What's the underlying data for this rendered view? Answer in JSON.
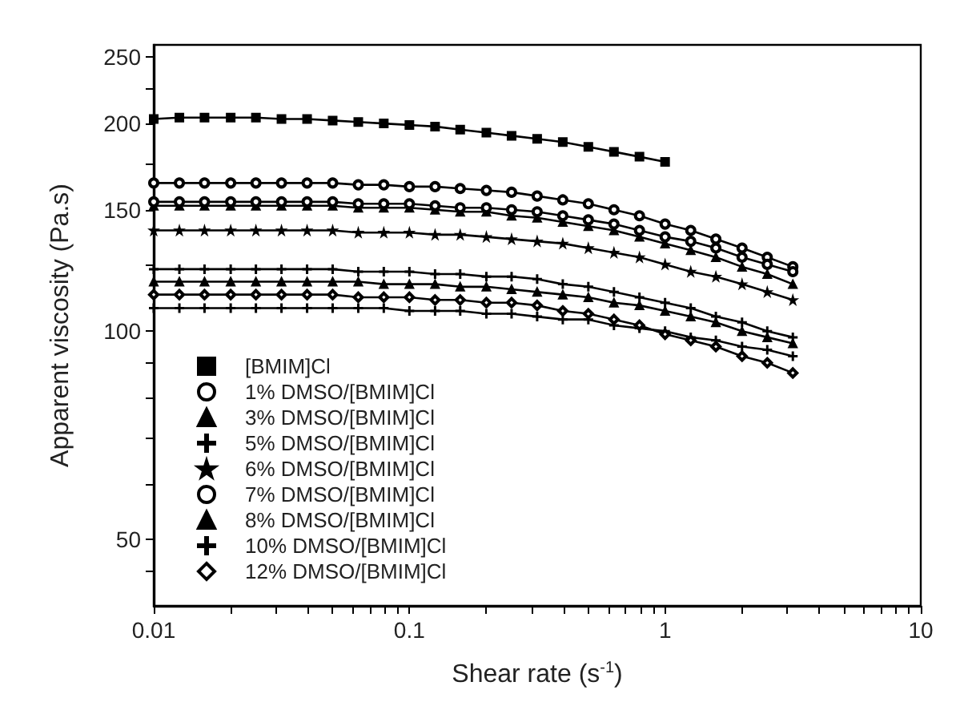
{
  "chart_data": {
    "type": "line",
    "xlabel": "Shear rate (s$^{-1}$)",
    "ylabel": "Apparent viscosity (Pa.s)",
    "log": "xy",
    "x": [
      0.01,
      0.0126,
      0.0158,
      0.02,
      0.0251,
      0.0316,
      0.0398,
      0.0501,
      0.0631,
      0.0794,
      0.1,
      0.126,
      0.158,
      0.2,
      0.251,
      0.316,
      0.398,
      0.501,
      0.631,
      0.794,
      1,
      1.26,
      1.58,
      2,
      2.51,
      3.16
    ],
    "xlim": [
      0.01,
      10
    ],
    "xticks": [
      0.01,
      {
        "value": 0.02,
        "label": null
      },
      {
        "value": 0.03,
        "label": null
      },
      {
        "value": 0.04,
        "label": null
      },
      {
        "value": 0.05,
        "label": null
      },
      {
        "value": 0.06,
        "label": null
      },
      {
        "value": 0.07,
        "label": null
      },
      {
        "value": 0.08,
        "label": null
      },
      {
        "value": 0.09,
        "label": null
      },
      0.1,
      {
        "value": 0.2,
        "label": null
      },
      {
        "value": 0.3,
        "label": null
      },
      {
        "value": 0.4,
        "label": null
      },
      {
        "value": 0.5,
        "label": null
      },
      {
        "value": 0.6,
        "label": null
      },
      {
        "value": 0.7,
        "label": null
      },
      {
        "value": 0.8,
        "label": null
      },
      {
        "value": 0.9,
        "label": null
      },
      1,
      {
        "value": 2,
        "label": null
      },
      {
        "value": 3,
        "label": null
      },
      {
        "value": 4,
        "label": null
      },
      {
        "value": 5,
        "label": null
      },
      {
        "value": 6,
        "label": null
      },
      {
        "value": 7,
        "label": null
      },
      {
        "value": 8,
        "label": null
      },
      {
        "value": 9,
        "label": null
      },
      10
    ],
    "ylim": [
      40,
      260
    ],
    "yticks": [
      {
        "value": 45,
        "label": null
      },
      50,
      {
        "value": 60,
        "label": null
      },
      {
        "value": 70,
        "label": null
      },
      {
        "value": 80,
        "label": null
      },
      {
        "value": 90,
        "label": null
      },
      100,
      {
        "value": 125,
        "label": null
      },
      150,
      {
        "value": 175,
        "label": null
      },
      200,
      {
        "value": 225,
        "label": null
      },
      250
    ],
    "legend": "bottom left",
    "series": [
      {
        "name": "[BMIM]Cl",
        "color": "#000000",
        "marker": "square",
        "values": [
          203,
          204,
          204,
          204,
          204,
          203,
          203,
          202,
          201,
          200,
          199,
          198,
          196,
          194,
          192,
          190,
          188,
          185,
          182,
          179,
          176,
          null,
          null,
          null,
          null,
          null
        ]
      },
      {
        "name": "1% DMSO/[BMIM]Cl",
        "color": "#000000",
        "marker": "circle",
        "values": [
          164,
          164,
          164,
          164,
          164,
          164,
          164,
          164,
          163,
          163,
          162,
          162,
          161,
          160,
          159,
          157,
          155,
          153,
          150,
          147,
          143,
          140,
          136,
          132,
          128,
          124
        ]
      },
      {
        "name": "3% DMSO/[BMIM]Cl",
        "color": "#000000",
        "marker": "triangle",
        "values": [
          152,
          152,
          152,
          152,
          152,
          152,
          152,
          152,
          151,
          151,
          151,
          150,
          149,
          149,
          147,
          146,
          144,
          142,
          140,
          137,
          134,
          131,
          128,
          124,
          121,
          117
        ]
      },
      {
        "name": "5% DMSO/[BMIM]Cl",
        "color": "#000000",
        "marker": "cross",
        "values": [
          108,
          108,
          108,
          108,
          108,
          108,
          108,
          108,
          108,
          108,
          107,
          107,
          107,
          106,
          106,
          105,
          104,
          104,
          102,
          101,
          100,
          98,
          97,
          95,
          94,
          92
        ]
      },
      {
        "name": "6% DMSO/[BMIM]Cl",
        "color": "#000000",
        "marker": "star",
        "values": [
          140,
          140,
          140,
          140,
          140,
          140,
          140,
          140,
          139,
          139,
          139,
          138,
          138,
          137,
          136,
          135,
          134,
          132,
          130,
          128,
          125,
          122,
          120,
          117,
          114,
          111
        ]
      },
      {
        "name": "7% DMSO/[BMIM]Cl",
        "color": "#000000",
        "marker": "circle",
        "values": [
          154,
          154,
          154,
          154,
          154,
          154,
          154,
          154,
          153,
          153,
          153,
          152,
          151,
          151,
          150,
          149,
          147,
          145,
          143,
          140,
          137,
          135,
          132,
          128,
          125,
          122
        ]
      },
      {
        "name": "8% DMSO/[BMIM]Cl",
        "color": "#000000",
        "marker": "triangle",
        "values": [
          118,
          118,
          118,
          118,
          118,
          118,
          118,
          118,
          118,
          117,
          117,
          117,
          116,
          116,
          115,
          114,
          113,
          112,
          110,
          109,
          107,
          105,
          103,
          100,
          98,
          96
        ]
      },
      {
        "name": "10% DMSO/[BMIM]Cl",
        "color": "#000000",
        "marker": "cross",
        "values": [
          123,
          123,
          123,
          123,
          123,
          123,
          123,
          123,
          122,
          122,
          122,
          121,
          121,
          120,
          120,
          119,
          117,
          116,
          114,
          112,
          110,
          108,
          105,
          103,
          100,
          98
        ]
      },
      {
        "name": "12% DMSO/[BMIM]Cl",
        "color": "#000000",
        "marker": "diamond",
        "values": [
          113,
          113,
          113,
          113,
          113,
          113,
          113,
          113,
          112,
          112,
          112,
          111,
          111,
          110,
          110,
          109,
          107,
          106,
          104,
          102,
          99,
          97,
          95,
          92,
          90,
          87
        ]
      }
    ]
  }
}
